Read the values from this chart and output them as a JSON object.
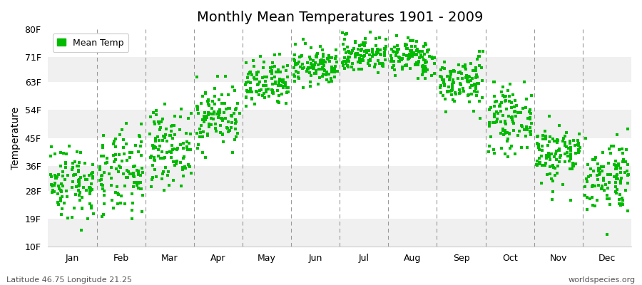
{
  "title": "Monthly Mean Temperatures 1901 - 2009",
  "ylabel": "Temperature",
  "footer_left": "Latitude 46.75 Longitude 21.25",
  "footer_right": "worldspecies.org",
  "legend_label": "Mean Temp",
  "marker_color": "#00BB00",
  "ytick_labels": [
    "10F",
    "19F",
    "28F",
    "36F",
    "45F",
    "54F",
    "63F",
    "71F",
    "80F"
  ],
  "ytick_values": [
    10,
    19,
    28,
    36,
    45,
    54,
    63,
    71,
    80
  ],
  "ymin": 10,
  "ymax": 80,
  "months": [
    "Jan",
    "Feb",
    "Mar",
    "Apr",
    "May",
    "Jun",
    "Jul",
    "Aug",
    "Sep",
    "Oct",
    "Nov",
    "Dec"
  ],
  "n_years": 109,
  "background_color": "#ffffff",
  "band_colors": [
    "#f0f0f0",
    "#ffffff"
  ],
  "seed": 42,
  "monthly_means_F": [
    31,
    33,
    42,
    52,
    62,
    68,
    72,
    71,
    63,
    51,
    40,
    33
  ],
  "monthly_stds_F": [
    6,
    7,
    6,
    5,
    4,
    3,
    3,
    3,
    4,
    5,
    5,
    6
  ],
  "monthly_mins_F": [
    13,
    12,
    22,
    32,
    46,
    54,
    58,
    56,
    47,
    35,
    24,
    14
  ],
  "monthly_maxs_F": [
    48,
    50,
    56,
    65,
    73,
    77,
    79,
    79,
    73,
    63,
    52,
    48
  ]
}
